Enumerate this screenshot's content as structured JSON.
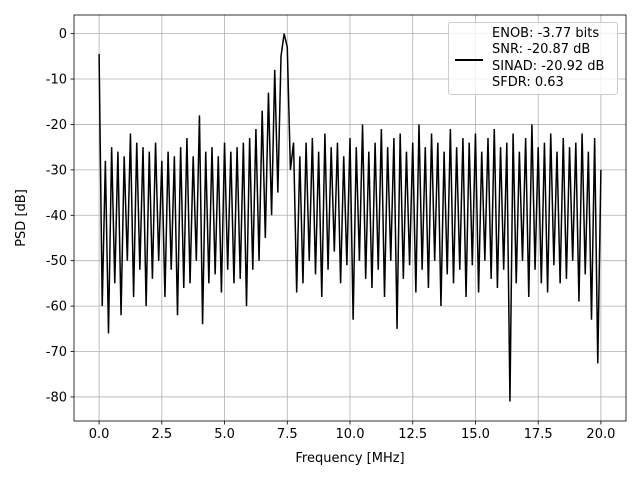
{
  "chart_data": {
    "type": "line",
    "xlabel": "Frequency [MHz]",
    "ylabel": "PSD [dB]",
    "x": [
      0,
      0.125,
      0.25,
      0.375,
      0.5,
      0.625,
      0.75,
      0.875,
      1,
      1.125,
      1.25,
      1.375,
      1.5,
      1.625,
      1.75,
      1.875,
      2,
      2.125,
      2.25,
      2.375,
      2.5,
      2.625,
      2.75,
      2.875,
      3,
      3.125,
      3.25,
      3.375,
      3.5,
      3.625,
      3.75,
      3.875,
      4,
      4.125,
      4.25,
      4.375,
      4.5,
      4.625,
      4.75,
      4.875,
      5,
      5.125,
      5.25,
      5.375,
      5.5,
      5.625,
      5.75,
      5.875,
      6,
      6.125,
      6.25,
      6.375,
      6.5,
      6.625,
      6.75,
      6.875,
      7,
      7.125,
      7.25,
      7.375,
      7.5,
      7.625,
      7.75,
      7.875,
      8,
      8.125,
      8.25,
      8.375,
      8.5,
      8.625,
      8.75,
      8.875,
      9,
      9.125,
      9.25,
      9.375,
      9.5,
      9.625,
      9.75,
      9.875,
      10,
      10.125,
      10.25,
      10.375,
      10.5,
      10.625,
      10.75,
      10.875,
      11,
      11.125,
      11.25,
      11.375,
      11.5,
      11.625,
      11.75,
      11.875,
      12,
      12.125,
      12.25,
      12.375,
      12.5,
      12.625,
      12.75,
      12.875,
      13,
      13.125,
      13.25,
      13.375,
      13.5,
      13.625,
      13.75,
      13.875,
      14,
      14.125,
      14.25,
      14.375,
      14.5,
      14.625,
      14.75,
      14.875,
      15,
      15.125,
      15.25,
      15.375,
      15.5,
      15.625,
      15.75,
      15.875,
      16,
      16.125,
      16.25,
      16.375,
      16.5,
      16.625,
      16.75,
      16.875,
      17,
      17.125,
      17.25,
      17.375,
      17.5,
      17.625,
      17.75,
      17.875,
      18,
      18.125,
      18.25,
      18.375,
      18.5,
      18.625,
      18.75,
      18.875,
      19,
      19.125,
      19.25,
      19.375,
      19.5,
      19.625,
      19.75,
      19.875,
      20
    ],
    "series": [
      {
        "name": "ENOB: -3.77 bits\nSNR: -20.87 dB\nSINAD: -20.92 dB\nSFDR: 0.63",
        "color": "#000000",
        "values": [
          -4.5,
          -60,
          -28,
          -66,
          -25,
          -55,
          -26,
          -62,
          -27,
          -50,
          -22,
          -58,
          -24,
          -52,
          -25,
          -60,
          -26,
          -54,
          -24,
          -50,
          -28,
          -58,
          -26,
          -52,
          -27,
          -62,
          -25,
          -56,
          -23,
          -55,
          -27,
          -50,
          -18,
          -64,
          -26,
          -55,
          -25,
          -53,
          -27,
          -57,
          -24,
          -52,
          -26,
          -55,
          -25,
          -54,
          -24,
          -60,
          -23,
          -52,
          -21,
          -50,
          -17,
          -45,
          -13,
          -40,
          -8,
          -35,
          -5,
          0,
          -3,
          -30,
          -24,
          -57,
          -27,
          -55,
          -24,
          -50,
          -23,
          -53,
          -26,
          -58,
          -22,
          -52,
          -25,
          -48,
          -24,
          -55,
          -27,
          -51,
          -23,
          -63,
          -25,
          -50,
          -20,
          -54,
          -26,
          -56,
          -24,
          -52,
          -21,
          -58,
          -25,
          -50,
          -23,
          -65,
          -22,
          -54,
          -26,
          -51,
          -24,
          -57,
          -20,
          -52,
          -25,
          -56,
          -22,
          -50,
          -24,
          -60,
          -26,
          -53,
          -21,
          -55,
          -25,
          -52,
          -23,
          -58,
          -24,
          -51,
          -22,
          -57,
          -26,
          -50,
          -23,
          -54,
          -21,
          -56,
          -25,
          -52,
          -24,
          -81,
          -22,
          -55,
          -26,
          -50,
          -23,
          -58,
          -20,
          -52,
          -25,
          -55,
          -24,
          -57,
          -22,
          -51,
          -26,
          -55,
          -23,
          -54,
          -25,
          -50,
          -24,
          -59,
          -22,
          -53,
          -26,
          -63,
          -23,
          -72.6,
          -30
        ]
      }
    ],
    "xlim": [
      -1,
      21
    ],
    "ylim": [
      -85.3,
      4.1
    ],
    "xticks": [
      {
        "value": 0,
        "label": "0.0"
      },
      2.5,
      {
        "value": 5,
        "label": "5.0"
      },
      7.5,
      {
        "value": 10,
        "label": "10.0"
      },
      12.5,
      {
        "value": 15,
        "label": "15.0"
      },
      17.5,
      {
        "value": 20,
        "label": "20.0"
      }
    ],
    "yticks": [
      0,
      -10,
      -20,
      -30,
      -40,
      -50,
      -60,
      -70,
      -80
    ],
    "grid": true,
    "legend": "upper right"
  }
}
